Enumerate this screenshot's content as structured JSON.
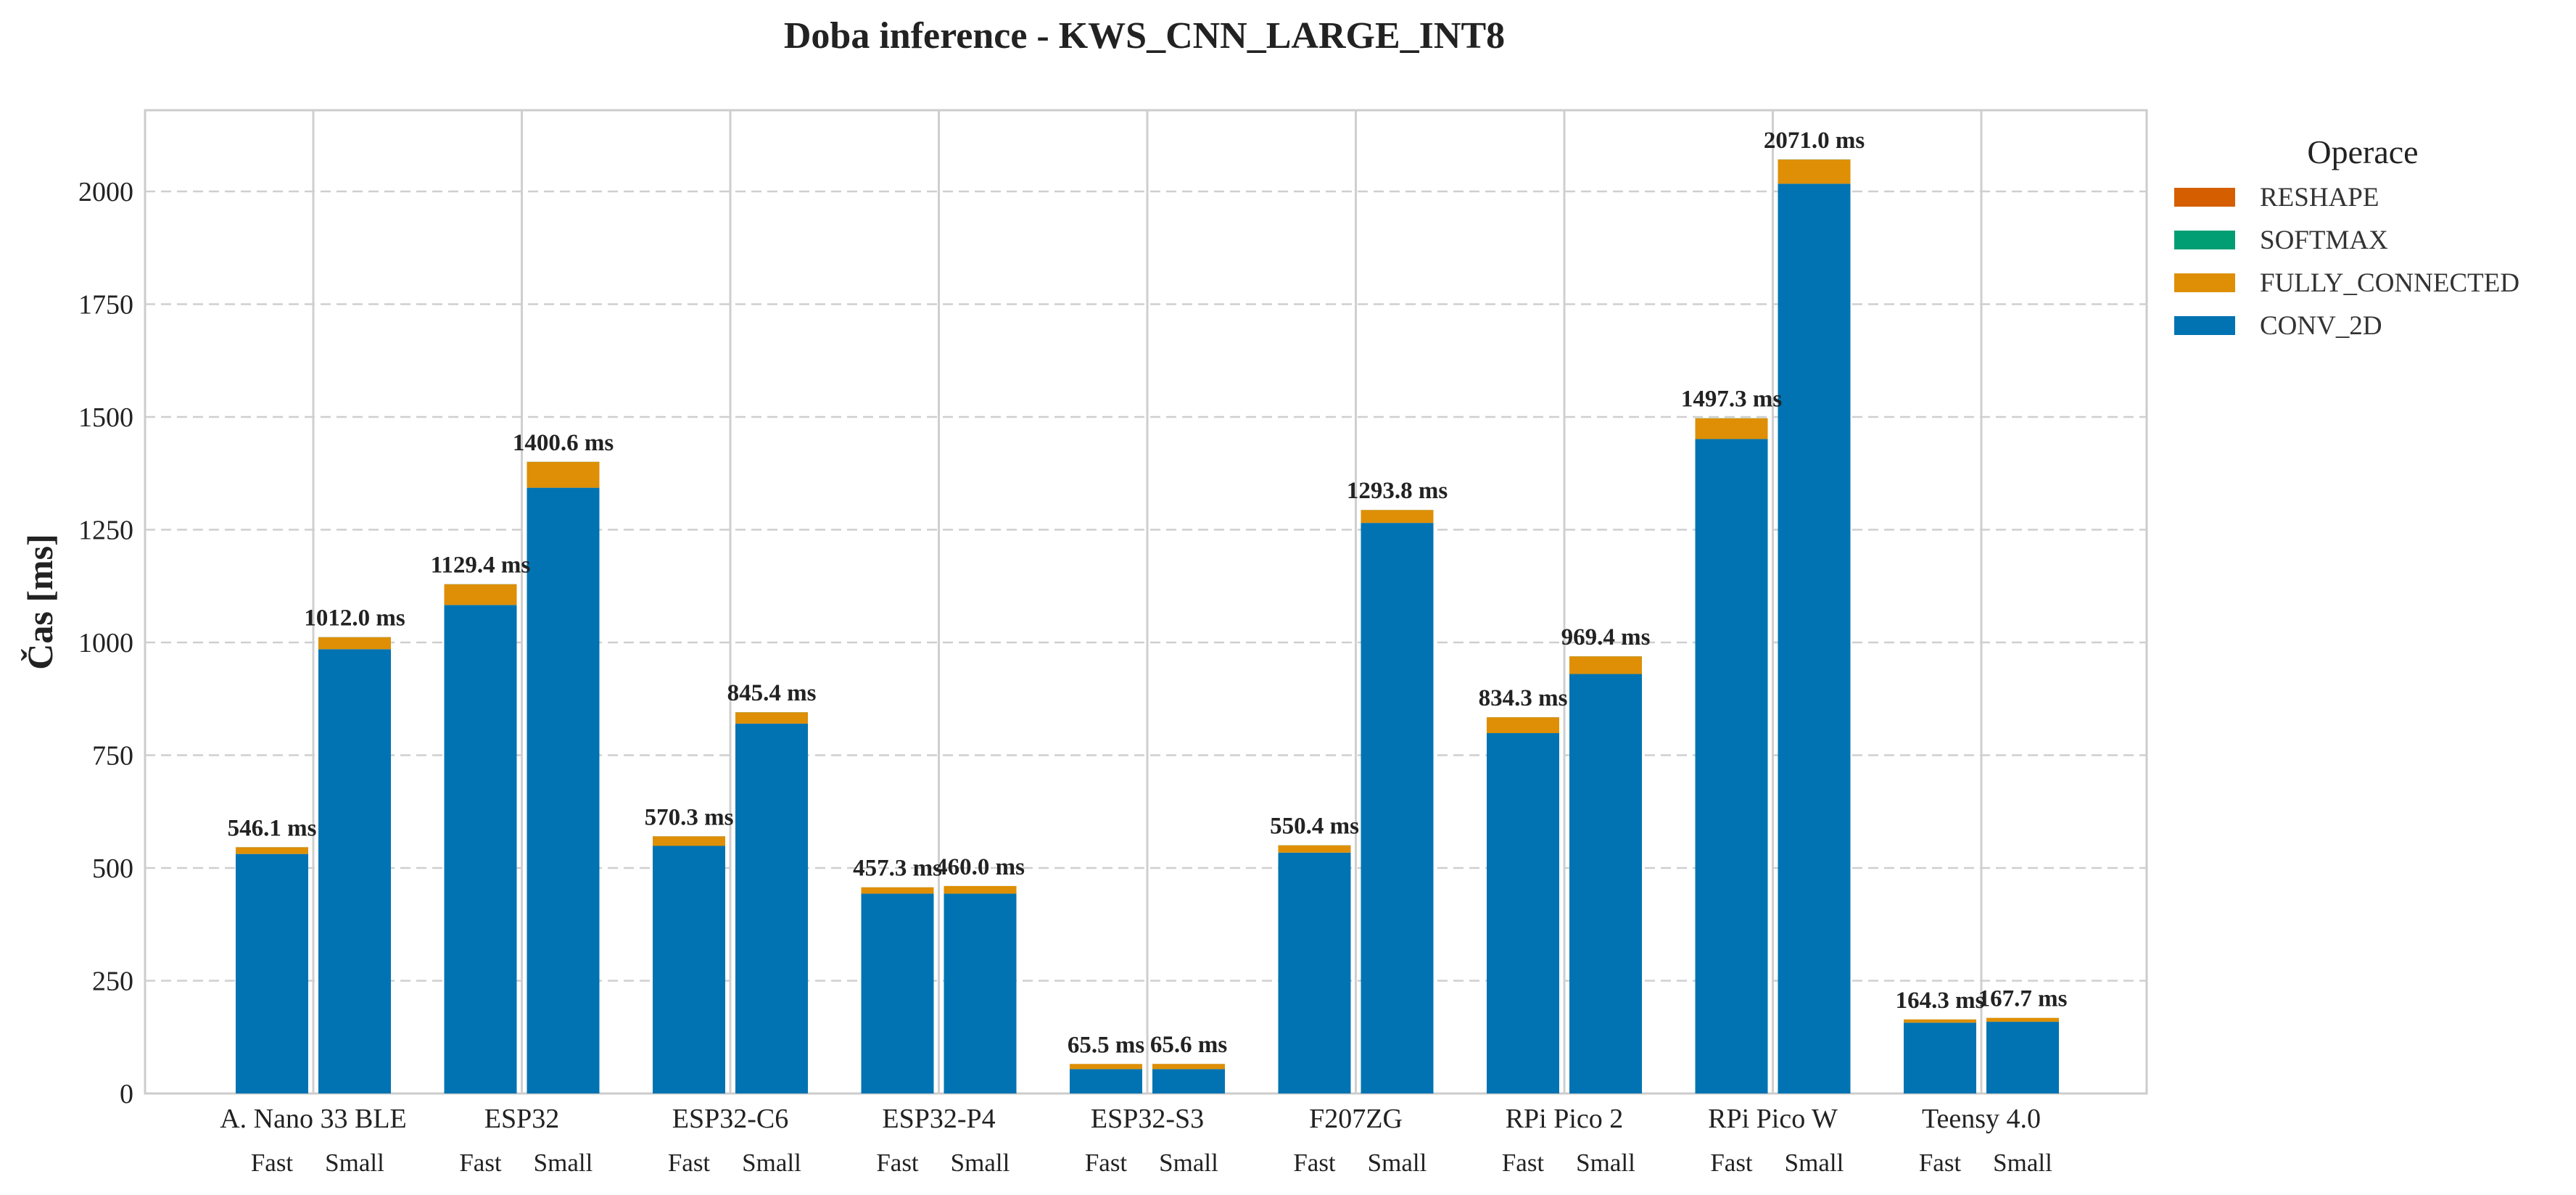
{
  "chart_data": {
    "type": "bar",
    "stacked": true,
    "title": "Doba inference - KWS_CNN_LARGE_INT8",
    "ylabel": "Čas [ms]",
    "xlabel": "",
    "ylim": [
      0,
      2180
    ],
    "yticks": [
      0,
      250,
      500,
      750,
      1000,
      1250,
      1500,
      1750,
      2000
    ],
    "grid": true,
    "legend": {
      "title": "Operace",
      "placement": "outside-right",
      "entries": [
        "RESHAPE",
        "SOFTMAX",
        "FULLY_CONNECTED",
        "CONV_2D"
      ]
    },
    "colors": {
      "CONV_2D": "#0173b2",
      "FULLY_CONNECTED": "#de8f05",
      "SOFTMAX": "#029e73",
      "RESHAPE": "#d55e00"
    },
    "variants": [
      "Fast",
      "Small"
    ],
    "groups": [
      "A. Nano 33 BLE",
      "ESP32",
      "ESP32-C6",
      "ESP32-P4",
      "ESP32-S3",
      "F207ZG",
      "RPi Pico 2",
      "RPi Pico W",
      "Teensy 4.0"
    ],
    "bars": [
      {
        "group": "A. Nano 33 BLE",
        "variant": "Fast",
        "total": 546.1,
        "total_label": "546.1 ms",
        "CONV_2D": 531.0,
        "FULLY_CONNECTED": 14.8,
        "SOFTMAX": 0.2,
        "RESHAPE": 0.1
      },
      {
        "group": "A. Nano 33 BLE",
        "variant": "Small",
        "total": 1012.0,
        "total_label": "1012.0 ms",
        "CONV_2D": 985.0,
        "FULLY_CONNECTED": 26.6,
        "SOFTMAX": 0.3,
        "RESHAPE": 0.1
      },
      {
        "group": "ESP32",
        "variant": "Fast",
        "total": 1129.4,
        "total_label": "1129.4 ms",
        "CONV_2D": 1083.0,
        "FULLY_CONNECTED": 46.0,
        "SOFTMAX": 0.3,
        "RESHAPE": 0.1
      },
      {
        "group": "ESP32",
        "variant": "Small",
        "total": 1400.6,
        "total_label": "1400.6 ms",
        "CONV_2D": 1343.0,
        "FULLY_CONNECTED": 57.2,
        "SOFTMAX": 0.3,
        "RESHAPE": 0.1
      },
      {
        "group": "ESP32-C6",
        "variant": "Fast",
        "total": 570.3,
        "total_label": "570.3 ms",
        "CONV_2D": 549.0,
        "FULLY_CONNECTED": 21.0,
        "SOFTMAX": 0.2,
        "RESHAPE": 0.1
      },
      {
        "group": "ESP32-C6",
        "variant": "Small",
        "total": 845.4,
        "total_label": "845.4 ms",
        "CONV_2D": 820.0,
        "FULLY_CONNECTED": 25.1,
        "SOFTMAX": 0.2,
        "RESHAPE": 0.1
      },
      {
        "group": "ESP32-P4",
        "variant": "Fast",
        "total": 457.3,
        "total_label": "457.3 ms",
        "CONV_2D": 443.0,
        "FULLY_CONNECTED": 14.1,
        "SOFTMAX": 0.1,
        "RESHAPE": 0.1
      },
      {
        "group": "ESP32-P4",
        "variant": "Small",
        "total": 460.0,
        "total_label": "460.0 ms",
        "CONV_2D": 443.0,
        "FULLY_CONNECTED": 16.8,
        "SOFTMAX": 0.1,
        "RESHAPE": 0.1
      },
      {
        "group": "ESP32-S3",
        "variant": "Fast",
        "total": 65.5,
        "total_label": "65.5 ms",
        "CONV_2D": 54.0,
        "FULLY_CONNECTED": 11.4,
        "SOFTMAX": 0.05,
        "RESHAPE": 0.05
      },
      {
        "group": "ESP32-S3",
        "variant": "Small",
        "total": 65.6,
        "total_label": "65.6 ms",
        "CONV_2D": 54.0,
        "FULLY_CONNECTED": 11.5,
        "SOFTMAX": 0.05,
        "RESHAPE": 0.05
      },
      {
        "group": "F207ZG",
        "variant": "Fast",
        "total": 550.4,
        "total_label": "550.4 ms",
        "CONV_2D": 534.0,
        "FULLY_CONNECTED": 16.1,
        "SOFTMAX": 0.2,
        "RESHAPE": 0.1
      },
      {
        "group": "F207ZG",
        "variant": "Small",
        "total": 1293.8,
        "total_label": "1293.8 ms",
        "CONV_2D": 1265.0,
        "FULLY_CONNECTED": 28.5,
        "SOFTMAX": 0.2,
        "RESHAPE": 0.1
      },
      {
        "group": "RPi Pico 2",
        "variant": "Fast",
        "total": 834.3,
        "total_label": "834.3 ms",
        "CONV_2D": 799.0,
        "FULLY_CONNECTED": 35.0,
        "SOFTMAX": 0.2,
        "RESHAPE": 0.1
      },
      {
        "group": "RPi Pico 2",
        "variant": "Small",
        "total": 969.4,
        "total_label": "969.4 ms",
        "CONV_2D": 930.0,
        "FULLY_CONNECTED": 39.1,
        "SOFTMAX": 0.2,
        "RESHAPE": 0.1
      },
      {
        "group": "RPi Pico W",
        "variant": "Fast",
        "total": 1497.3,
        "total_label": "1497.3 ms",
        "CONV_2D": 1451.0,
        "FULLY_CONNECTED": 45.9,
        "SOFTMAX": 0.3,
        "RESHAPE": 0.1
      },
      {
        "group": "RPi Pico W",
        "variant": "Small",
        "total": 2071.0,
        "total_label": "2071.0 ms",
        "CONV_2D": 2017.0,
        "FULLY_CONNECTED": 53.6,
        "SOFTMAX": 0.3,
        "RESHAPE": 0.1
      },
      {
        "group": "Teensy 4.0",
        "variant": "Fast",
        "total": 164.3,
        "total_label": "164.3 ms",
        "CONV_2D": 157.0,
        "FULLY_CONNECTED": 7.2,
        "SOFTMAX": 0.05,
        "RESHAPE": 0.05
      },
      {
        "group": "Teensy 4.0",
        "variant": "Small",
        "total": 167.7,
        "total_label": "167.7 ms",
        "CONV_2D": 159.0,
        "FULLY_CONNECTED": 8.6,
        "SOFTMAX": 0.05,
        "RESHAPE": 0.05
      }
    ]
  }
}
